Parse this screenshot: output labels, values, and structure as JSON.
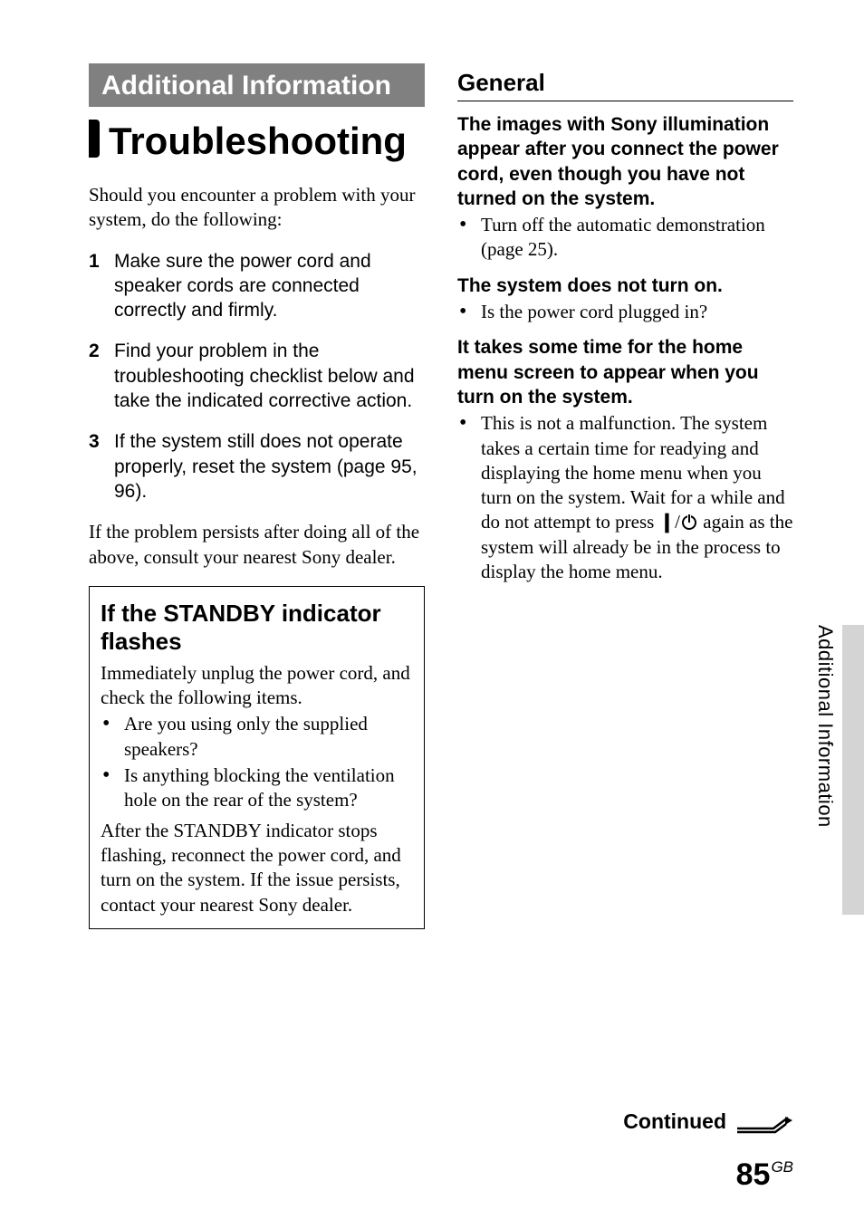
{
  "section_box": "Additional Information",
  "main_heading": "Troubleshooting",
  "intro": "Should you encounter a problem with your system, do the following:",
  "steps": [
    "Make sure the power cord and speaker cords are connected correctly and firmly.",
    "Find your problem in the troubleshooting checklist below and take the indicated corrective action.",
    "If the system still does not operate properly, reset the system (page 95, 96)."
  ],
  "after_steps": "If the problem persists after doing all of the above, consult your nearest Sony dealer.",
  "callout": {
    "heading": "If the STANDBY indicator flashes",
    "lead": "Immediately unplug the power cord, and check the following items.",
    "bullets": [
      "Are you using only the supplied speakers?",
      "Is anything blocking the ventilation hole on the rear of the system?"
    ],
    "tail": "After the STANDBY indicator stops flashing, reconnect the power cord, and turn on the system. If the issue persists, contact your nearest Sony dealer."
  },
  "general": {
    "heading": "General",
    "items": [
      {
        "heading": "The images with Sony illumination appear after you connect the power cord, even though you have not turned on the system.",
        "bullets": [
          "Turn off the automatic demonstration (page 25)."
        ]
      },
      {
        "heading": "The system does not turn on.",
        "bullets": [
          "Is the power cord plugged in?"
        ]
      },
      {
        "heading": "It takes some time for the home menu screen to appear when you turn on the system.",
        "bullets_html": [
          "This is not a malfunction. The system takes a certain time for readying and displaying the home menu when you turn on the system. Wait for a while and do not attempt to press <b>❙</b>/<span class=\"power-icon\" data-name=\"power-icon\" data-interactable=\"false\"></span> again as the system will already be in the process to display the home menu."
        ]
      }
    ]
  },
  "side_tab": "Additional Information",
  "continued": "Continued",
  "page_number": "85",
  "page_suffix": "GB",
  "colors": {
    "box_bg": "#808080",
    "box_fg": "#ffffff",
    "tab_bg": "#d4d4d4"
  }
}
